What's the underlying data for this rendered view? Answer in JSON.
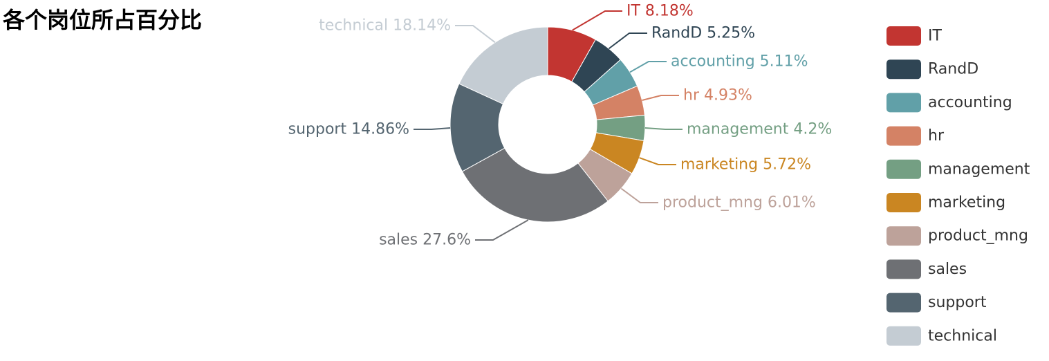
{
  "chart_data": {
    "type": "pie",
    "variant": "donut",
    "title": "各个岗位所占百分比",
    "slices": [
      {
        "name": "IT",
        "value": 8.18,
        "label": "IT 8.18%",
        "color": "#c23531"
      },
      {
        "name": "RandD",
        "value": 5.25,
        "label": "RandD 5.25%",
        "color": "#2f4554"
      },
      {
        "name": "accounting",
        "value": 5.11,
        "label": "accounting 5.11%",
        "color": "#61a0a8"
      },
      {
        "name": "hr",
        "value": 4.93,
        "label": "hr 4.93%",
        "color": "#d48265"
      },
      {
        "name": "management",
        "value": 4.2,
        "label": "management 4.2%",
        "color": "#749f83"
      },
      {
        "name": "marketing",
        "value": 5.72,
        "label": "marketing 5.72%",
        "color": "#ca8622"
      },
      {
        "name": "product_mng",
        "value": 6.01,
        "label": "product_mng 6.01%",
        "color": "#bda29a"
      },
      {
        "name": "sales",
        "value": 27.6,
        "label": "sales 27.6%",
        "color": "#6e7074"
      },
      {
        "name": "support",
        "value": 14.86,
        "label": "support 14.86%",
        "color": "#546570"
      },
      {
        "name": "technical",
        "value": 18.14,
        "label": "technical 18.14%",
        "color": "#c4ccd3"
      }
    ],
    "legend_position": "right",
    "start_angle": "top, clockwise"
  }
}
